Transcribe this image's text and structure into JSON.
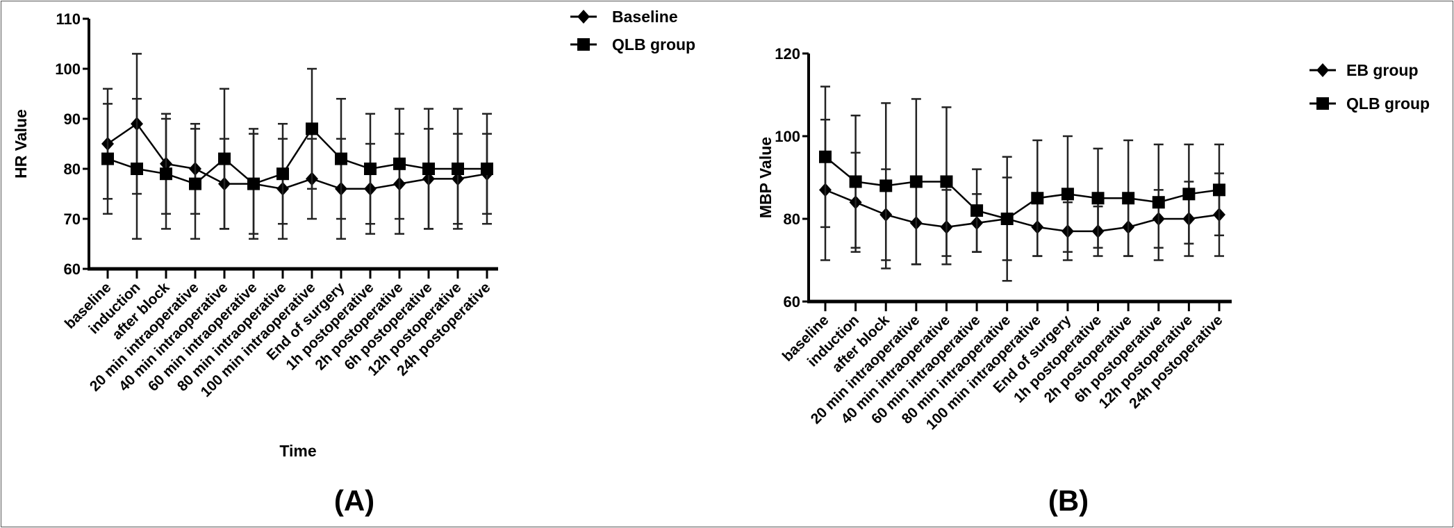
{
  "chart_data": [
    {
      "type": "line",
      "panel_label": "(A)",
      "xlabel": "Time",
      "ylabel": "HR Value",
      "ylim": [
        60,
        110
      ],
      "yticks": [
        60,
        70,
        80,
        90,
        100,
        110
      ],
      "categories": [
        "baseline",
        "induction",
        "after block",
        "20 min intraoperative",
        "40 min intraoperative",
        "60 min intraoperative",
        "80 min intraoperative",
        "100 min intraoperative",
        "End of surgery",
        "1h postoperative",
        "2h postoperative",
        "6h postoperative",
        "12h postoperative",
        "24h postoperative"
      ],
      "legend_position": "top-right",
      "series": [
        {
          "name": "Baseline",
          "marker": "circle",
          "values": [
            85,
            89,
            81,
            80,
            77,
            77,
            76,
            78,
            76,
            76,
            77,
            78,
            78,
            79
          ],
          "sd": [
            11,
            14,
            10,
            9,
            9,
            10,
            10,
            8,
            10,
            9,
            10,
            10,
            9,
            8
          ]
        },
        {
          "name": "QLB group",
          "marker": "square",
          "values": [
            82,
            80,
            79,
            77,
            82,
            77,
            79,
            88,
            82,
            80,
            81,
            80,
            80,
            80
          ],
          "sd": [
            11,
            14,
            11,
            11,
            14,
            11,
            10,
            12,
            12,
            11,
            11,
            12,
            12,
            11
          ]
        }
      ]
    },
    {
      "type": "line",
      "panel_label": "(B)",
      "xlabel": "",
      "ylabel": "MBP Value",
      "ylim": [
        60,
        120
      ],
      "yticks": [
        60,
        80,
        100,
        120
      ],
      "categories": [
        "baseline",
        "induction",
        "after block",
        "20 min intraoperative",
        "40 min intraoperative",
        "60 min intraoperative",
        "80 min intraoperative",
        "100 min intraoperative",
        "End of surgery",
        "1h postoperative",
        "2h postoperative",
        "6h postoperative",
        "12h postoperative",
        "24h postoperative"
      ],
      "legend_position": "top-right",
      "series": [
        {
          "name": "EB group",
          "marker": "circle",
          "values": [
            87,
            84,
            81,
            79,
            78,
            79,
            80,
            78,
            77,
            77,
            78,
            80,
            80,
            81
          ],
          "sd": [
            17,
            12,
            11,
            10,
            9,
            7,
            10,
            7,
            7,
            6,
            7,
            7,
            9,
            10
          ]
        },
        {
          "name": "QLB group",
          "marker": "square",
          "values": [
            95,
            89,
            88,
            89,
            89,
            82,
            80,
            85,
            86,
            85,
            85,
            84,
            86,
            87
          ],
          "sd": [
            17,
            16,
            20,
            20,
            18,
            10,
            15,
            14,
            14,
            12,
            14,
            14,
            12,
            11
          ]
        }
      ]
    }
  ]
}
